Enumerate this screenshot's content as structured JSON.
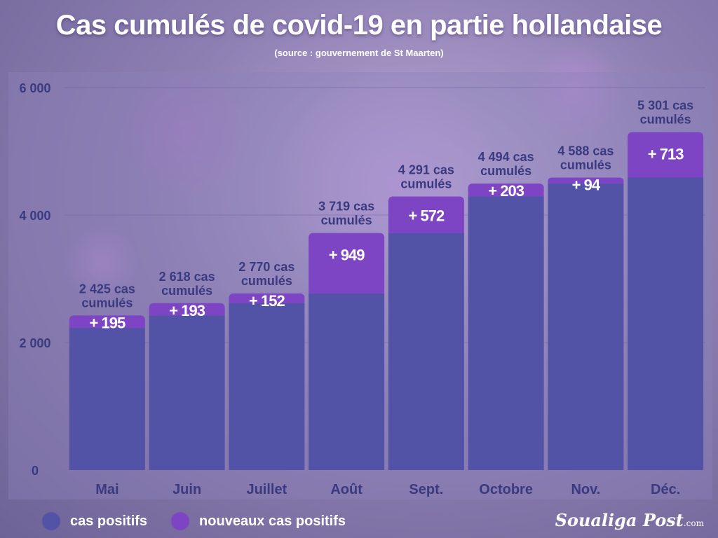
{
  "header": {
    "title": "Cas cumulés de covid-19 en partie hollandaise",
    "subtitle": "(source : gouvernement de St Maarten)"
  },
  "colors": {
    "base": "#5252a6",
    "new": "#7d45c4",
    "bar_label": "#3a3a80",
    "new_label": "#ffffff",
    "axis_label": "#3a3a80"
  },
  "legend": {
    "items": [
      {
        "label": "cas positifs",
        "color": "#5252a6"
      },
      {
        "label": "nouveaux cas positifs",
        "color": "#7d45c4"
      }
    ]
  },
  "brand": {
    "name": "Soualiga Post",
    "suffix": ".com"
  },
  "chart_data": {
    "type": "bar",
    "stacked": true,
    "categories": [
      "Mai",
      "Juin",
      "Juillet",
      "Août",
      "Sept.",
      "Octobre",
      "Nov.",
      "Déc."
    ],
    "series": [
      {
        "name": "cas positifs",
        "values": [
          2230,
          2425,
          2618,
          2770,
          3719,
          4291,
          4494,
          4588
        ]
      },
      {
        "name": "nouveaux cas positifs",
        "values": [
          195,
          193,
          152,
          949,
          572,
          203,
          94,
          713
        ]
      }
    ],
    "totals": [
      2425,
      2618,
      2770,
      3719,
      4291,
      4494,
      4588,
      5301
    ],
    "total_labels": [
      [
        "2 425 cas",
        "cumulés"
      ],
      [
        "2 618 cas",
        "cumulés"
      ],
      [
        "2 770 cas",
        "cumulés"
      ],
      [
        "3  719 cas",
        "cumulés"
      ],
      [
        "4 291 cas",
        "cumulés"
      ],
      [
        "4 494 cas",
        "cumulés"
      ],
      [
        "4 588 cas",
        "cumulés"
      ],
      [
        "5 301 cas",
        "cumulés"
      ]
    ],
    "new_labels": [
      "+ 195",
      "+ 193",
      "+ 152",
      "+ 949",
      "+ 572",
      "+ 203",
      "+ 94",
      "+ 713"
    ],
    "yticks": [
      0,
      2000,
      4000,
      6000
    ],
    "ytick_labels": [
      "0",
      "2 000",
      "4 000",
      "6 000"
    ],
    "ylim": [
      0,
      6000
    ],
    "grid": true,
    "legend_position": "bottom-left"
  }
}
